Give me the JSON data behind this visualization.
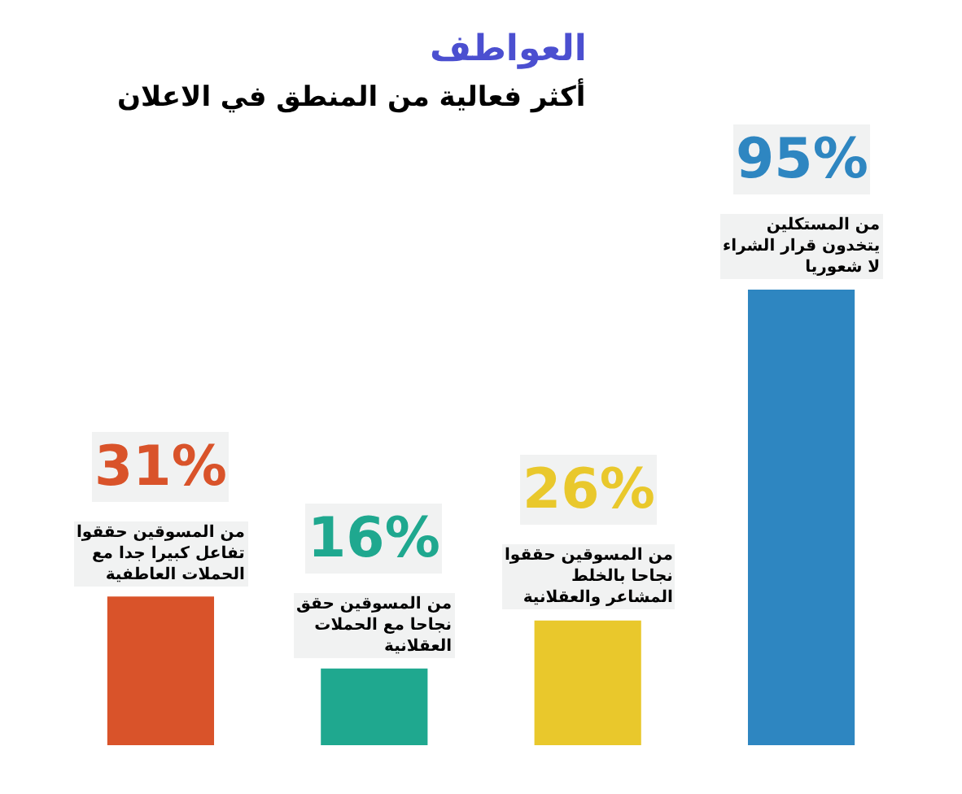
{
  "chart_data": {
    "type": "bar",
    "title": "العواطف",
    "subtitle": "أكثر فعالية من المنطق في الاعلان",
    "categories": [
      "من المسوقين حققوا تفاعل كبيرا جدا مع الحملات العاطفية",
      "من المسوقين حقق نجاحا مع الحملات العقلانية",
      "من المسوقين حققوا نجاحا بالخلط المشاعر والعقلانية",
      "من المستكلين يتخدون قرار الشراء لا شعوريا"
    ],
    "values": [
      31,
      16,
      26,
      95
    ],
    "value_labels": [
      "31%",
      "16%",
      "26%",
      "95%"
    ],
    "colors": [
      "#d9532a",
      "#1fa88f",
      "#e9c82c",
      "#2e86c1"
    ],
    "tick_labels": false,
    "grid": false
  }
}
